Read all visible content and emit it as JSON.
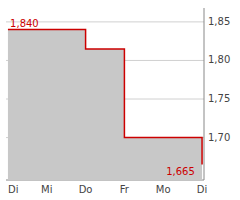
{
  "chart_data": {
    "type": "step",
    "categories": [
      "Di",
      "Mi",
      "Do",
      "Fr",
      "Mo",
      "Di"
    ],
    "values": [
      1.84,
      1.84,
      1.815,
      1.7,
      1.7,
      1.665
    ],
    "color": "#cc0000",
    "ylim": [
      1.645,
      1.868
    ],
    "yticks": [
      {
        "value": 1.7,
        "label": "1,70"
      },
      {
        "value": 1.75,
        "label": "1,75"
      },
      {
        "value": 1.8,
        "label": "1,80"
      },
      {
        "value": 1.85,
        "label": "1,85"
      }
    ],
    "grid": true,
    "annotations": [
      {
        "text": "1,840",
        "x": 0.03,
        "y": 1.84
      },
      {
        "text": "1,665",
        "x": 4.05,
        "y": 1.665
      }
    ]
  }
}
